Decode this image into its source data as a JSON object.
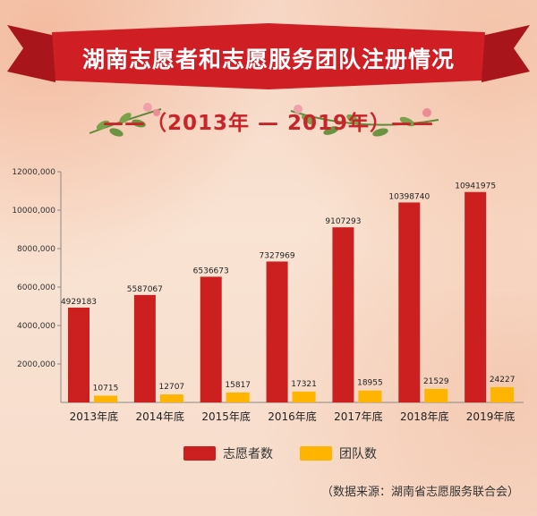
{
  "title": "湖南志愿者和志愿服务团队注册情况",
  "subtitle": "——（2013年 — 2019年）——",
  "source": "（数据来源：湖南省志愿服务联合会）",
  "colors": {
    "volunteers": "#cc1f1f",
    "teams": "#ffb400",
    "banner": "#cf1f25"
  },
  "chart_data": {
    "type": "bar",
    "categories": [
      "2013年底",
      "2014年底",
      "2015年底",
      "2016年底",
      "2017年底",
      "2018年底",
      "2019年底"
    ],
    "series": [
      {
        "name": "志愿者数",
        "values": [
          4929183,
          5587067,
          6536673,
          7327969,
          9107293,
          10398740,
          10941975
        ]
      },
      {
        "name": "团队数",
        "values": [
          10715,
          12707,
          15817,
          17321,
          18955,
          21529,
          24227
        ]
      }
    ],
    "ytick_labels": [
      "12000,000",
      "10000,000",
      "8000,000",
      "6000,000",
      "4000,000",
      "2000,000"
    ],
    "yticks": [
      12000000,
      10000000,
      8000000,
      6000000,
      4000000,
      2000000
    ],
    "ylim": [
      0,
      12000000
    ],
    "legend": "bottom",
    "grid": false
  }
}
